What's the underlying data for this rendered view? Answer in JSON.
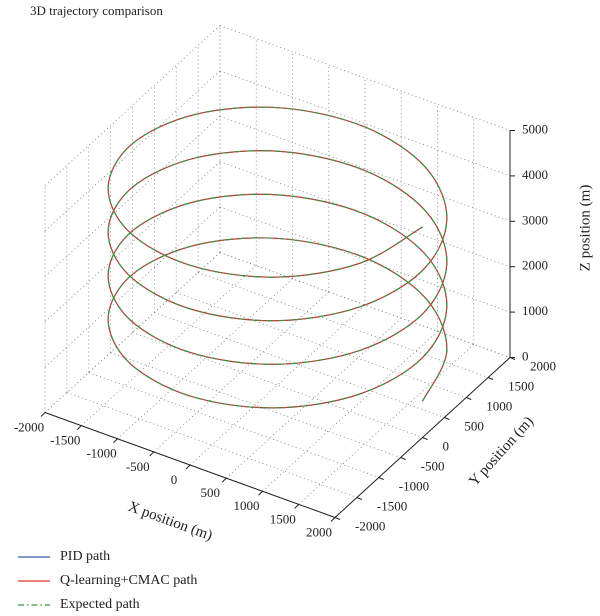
{
  "chart_data": {
    "type": "line3d",
    "title": "3D trajectory comparison",
    "xlabel": "X position (m)",
    "ylabel": "Y position (m)",
    "zlabel": "Z position (m)",
    "xlim": [
      -2000,
      2000
    ],
    "ylim": [
      -2000,
      2000
    ],
    "zlim": [
      0,
      5000
    ],
    "xticks": [
      -2000,
      -1500,
      -1000,
      -500,
      0,
      500,
      1000,
      1500,
      2000
    ],
    "yticks": [
      -2000,
      -1500,
      -1000,
      -500,
      0,
      500,
      1000,
      1500,
      2000
    ],
    "zticks": [
      0,
      1000,
      2000,
      3000,
      4000,
      5000
    ],
    "grid": true,
    "x": [
      2000,
      1732,
      1000,
      0,
      -1000,
      -1732,
      -2000,
      -1732,
      -1000,
      0,
      1000,
      1732,
      2000,
      1732,
      1000,
      0,
      -1000,
      -1732,
      -2000,
      -1732,
      -1000,
      0,
      1000,
      1732,
      2000,
      1732,
      1000,
      0,
      -1000,
      -1732,
      -2000,
      -1732,
      -1000,
      0,
      1000,
      1732,
      2000,
      1732,
      1000,
      0,
      -1000,
      -1732,
      -2000,
      -1732,
      -1000,
      0,
      1000,
      1732,
      2000
    ],
    "y": [
      0,
      1000,
      1732,
      2000,
      1732,
      1000,
      0,
      -1000,
      -1732,
      -2000,
      -1732,
      -1000,
      0,
      1000,
      1732,
      2000,
      1732,
      1000,
      0,
      -1000,
      -1732,
      -2000,
      -1732,
      -1000,
      0,
      1000,
      1732,
      2000,
      1732,
      1000,
      0,
      -1000,
      -1732,
      -2000,
      -1732,
      -1000,
      0,
      1000,
      1732,
      2000,
      1732,
      1000,
      0,
      -1000,
      -1732,
      -2000,
      -1732,
      -1000,
      0
    ],
    "series": [
      {
        "name": "PID path",
        "color": "#3b5ba8",
        "style": "solid",
        "values": [
          800,
          880,
          960,
          1040,
          1120,
          1200,
          1280,
          1360,
          1440,
          1520,
          1600,
          1680,
          1760,
          1840,
          1920,
          2000,
          2080,
          2160,
          2240,
          2320,
          2400,
          2480,
          2560,
          2640,
          2720,
          2800,
          2880,
          2960,
          3040,
          3120,
          3200,
          3280,
          3360,
          3440,
          3520,
          3600,
          3680,
          3760,
          3840,
          3920,
          4000,
          4080,
          4160,
          4240,
          4320,
          4400,
          4480,
          4560,
          4640
        ]
      },
      {
        "name": "Q-learning+CMAC path",
        "color": "#e0302a",
        "style": "solid",
        "values": [
          800,
          880,
          960,
          1040,
          1120,
          1200,
          1280,
          1360,
          1440,
          1520,
          1600,
          1680,
          1760,
          1840,
          1920,
          2000,
          2080,
          2160,
          2240,
          2320,
          2400,
          2480,
          2560,
          2640,
          2720,
          2800,
          2880,
          2960,
          3040,
          3120,
          3200,
          3280,
          3360,
          3440,
          3520,
          3600,
          3680,
          3760,
          3840,
          3920,
          4000,
          4080,
          4160,
          4240,
          4320,
          4400,
          4480,
          4560,
          4640
        ]
      },
      {
        "name": "Expected path",
        "color": "#2e9a3a",
        "style": "dashdot",
        "values": [
          800,
          880,
          960,
          1040,
          1120,
          1200,
          1280,
          1360,
          1440,
          1520,
          1600,
          1680,
          1760,
          1840,
          1920,
          2000,
          2080,
          2160,
          2240,
          2320,
          2400,
          2480,
          2560,
          2640,
          2720,
          2800,
          2880,
          2960,
          3040,
          3120,
          3200,
          3280,
          3360,
          3440,
          3520,
          3600,
          3680,
          3760,
          3840,
          3920,
          4000,
          4080,
          4160,
          4240,
          4320,
          4400,
          4480,
          4560,
          4640
        ]
      }
    ]
  }
}
